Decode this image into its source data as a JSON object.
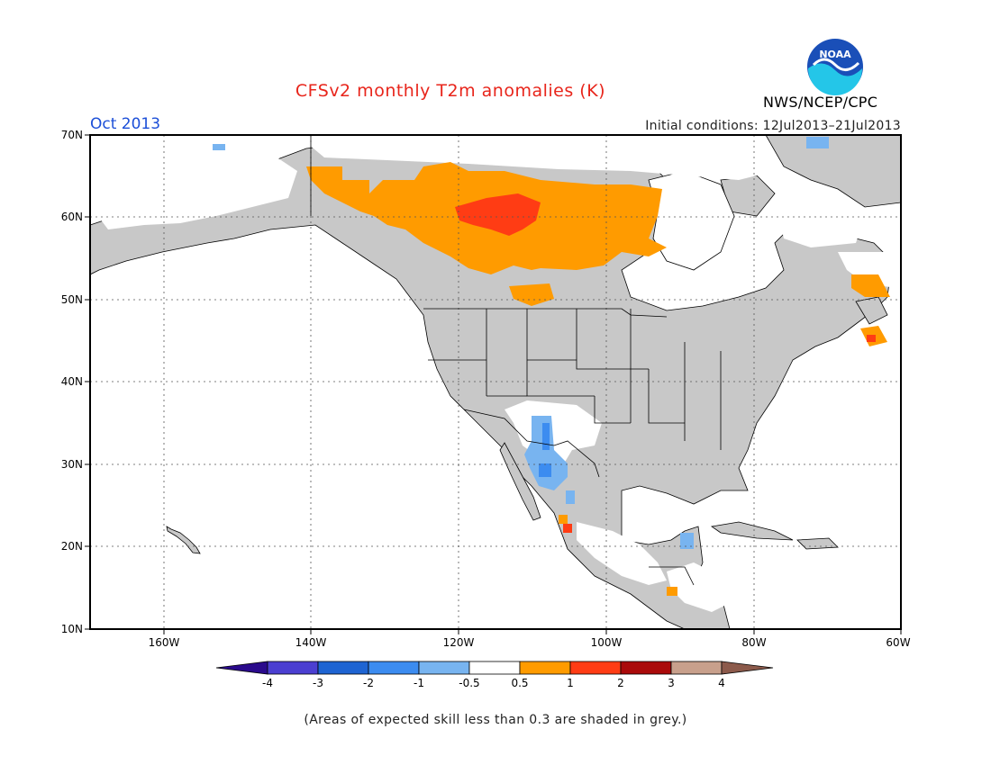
{
  "header": {
    "title": "CFSv2 monthly T2m anomalies (K)",
    "subtitle": "Oct 2013",
    "initial_conditions": "Initial conditions: 12Jul2013–21Jul2013",
    "organization": "NWS/NCEP/CPC",
    "logo_text": "NOAA"
  },
  "map": {
    "region": "North America",
    "lon_range": [
      -170,
      -60
    ],
    "lat_range": [
      10,
      70
    ],
    "lat_labels": [
      "10N",
      "20N",
      "30N",
      "40N",
      "50N",
      "60N",
      "70N"
    ],
    "lon_labels": [
      "160W",
      "140W",
      "120W",
      "100W",
      "80W",
      "60W"
    ],
    "land_color": "#c8c8c8",
    "ocean_color": "#ffffff"
  },
  "legend": {
    "tick_labels": [
      "-4",
      "-3",
      "-2",
      "-1",
      "-0.5",
      "0.5",
      "1",
      "2",
      "3",
      "4"
    ],
    "colors": [
      "#2a0a8c",
      "#4b3fd1",
      "#1e64d2",
      "#3c8cf0",
      "#78b4f0",
      "#ffffff",
      "#ff9b00",
      "#ff3c14",
      "#aa0a0a",
      "#c8a08c",
      "#8c5a4b"
    ]
  },
  "footnote": "(Areas of expected skill less than 0.3 are shaded in grey.)"
}
